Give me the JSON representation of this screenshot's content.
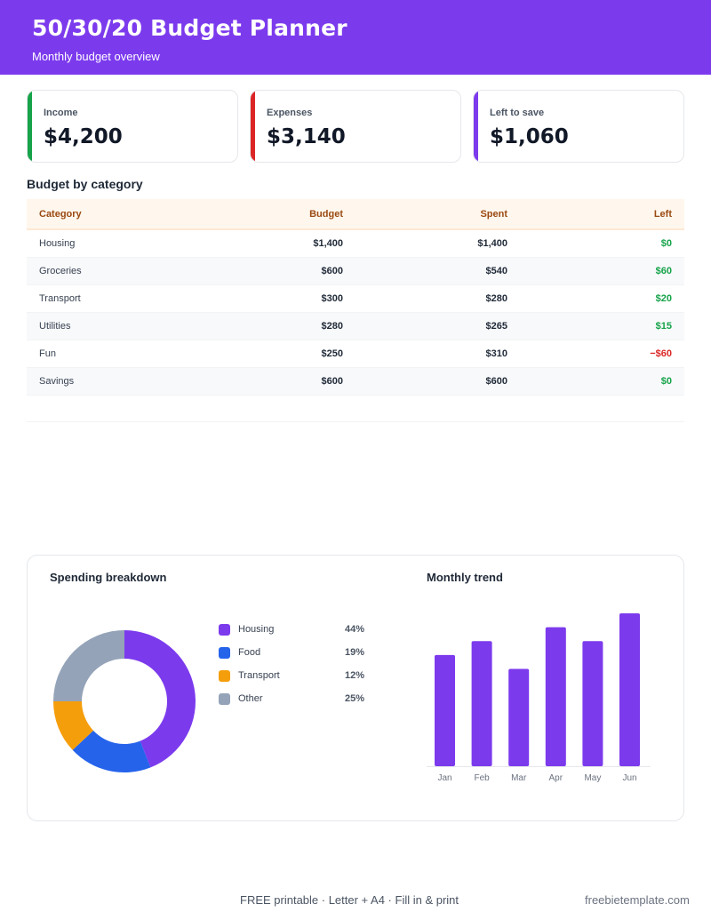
{
  "header": {
    "title": "50/30/20 Budget Planner",
    "subtitle": "Monthly budget overview",
    "color": "#7c3aed"
  },
  "summary": [
    {
      "label": "Income",
      "value": "$4,200",
      "color": "#16a34a"
    },
    {
      "label": "Expenses",
      "value": "$3,140",
      "color": "#dc2626"
    },
    {
      "label": "Left to save",
      "value": "$1,060",
      "color": "#7c3aed"
    }
  ],
  "table": {
    "title": "Budget by category",
    "columns": [
      "Category",
      "Budget",
      "Spent",
      "Left"
    ],
    "rows": [
      {
        "category": "Housing",
        "budget": "$1,400",
        "spent": "$1,400",
        "left": "$0",
        "status": "pos"
      },
      {
        "category": "Groceries",
        "budget": "$600",
        "spent": "$540",
        "left": "$60",
        "status": "pos"
      },
      {
        "category": "Transport",
        "budget": "$300",
        "spent": "$280",
        "left": "$20",
        "status": "pos"
      },
      {
        "category": "Utilities",
        "budget": "$280",
        "spent": "$265",
        "left": "$15",
        "status": "pos"
      },
      {
        "category": "Fun",
        "budget": "$250",
        "spent": "$310",
        "left": "−$60",
        "status": "neg"
      },
      {
        "category": "Savings",
        "budget": "$600",
        "spent": "$600",
        "left": "$0",
        "status": "pos"
      }
    ]
  },
  "chart_data": [
    {
      "type": "pie",
      "title": "Spending breakdown",
      "categories": [
        "Housing",
        "Food",
        "Transport",
        "Other"
      ],
      "values": [
        44,
        19,
        12,
        25
      ],
      "labels": [
        "44%",
        "19%",
        "12%",
        "25%"
      ],
      "colors": [
        "#7c3aed",
        "#2563eb",
        "#f59e0b",
        "#94a3b8"
      ],
      "donut": true,
      "legend": "right"
    },
    {
      "type": "bar",
      "title": "Monthly trend",
      "categories": [
        "Jan",
        "Feb",
        "Mar",
        "Apr",
        "May",
        "Jun"
      ],
      "values": [
        80,
        90,
        70,
        100,
        90,
        110
      ],
      "color": "#7c3aed",
      "ylim": [
        0,
        110
      ],
      "grid": false
    }
  ],
  "footer": {
    "center": "FREE printable  ·  Letter + A4  ·  Fill in & print",
    "right": "freebietemplate.com"
  }
}
